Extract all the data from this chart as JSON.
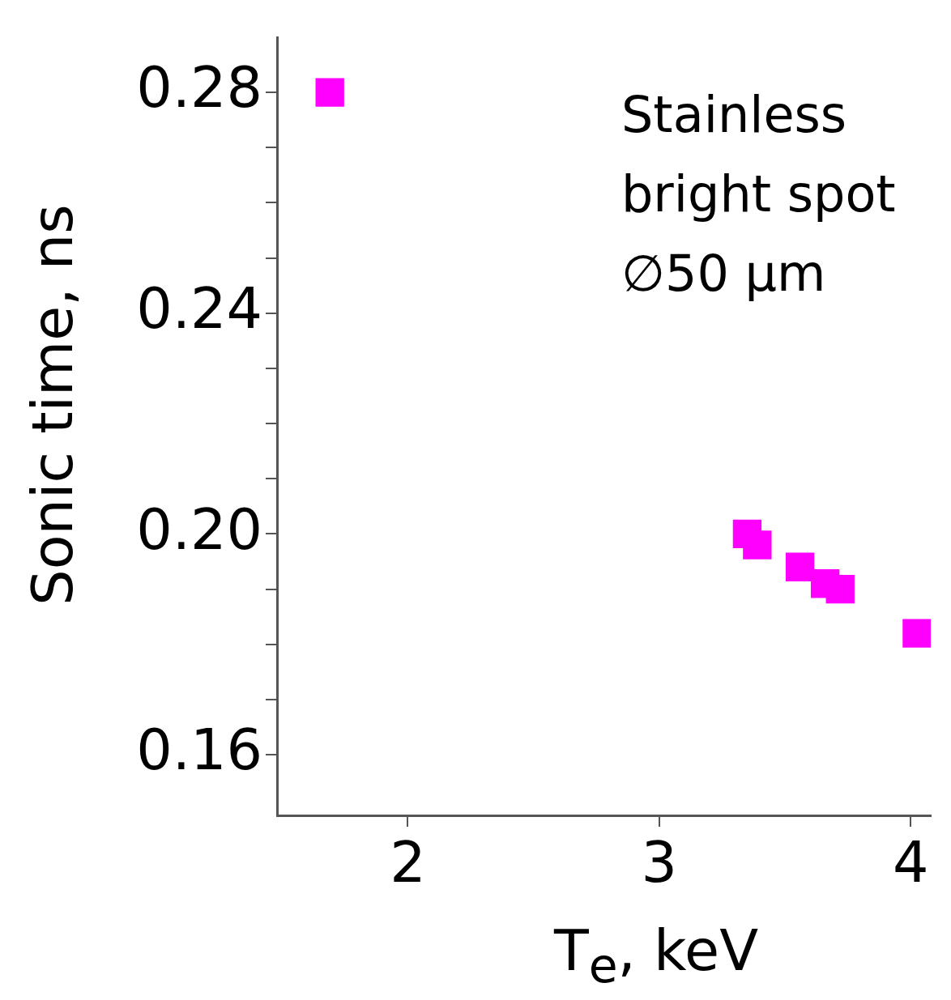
{
  "chart_data": {
    "type": "scatter",
    "xlabel": "T$_{e}$, keV",
    "ylabel": "Sonic time, ns",
    "annotations": [
      "Stainless\nbright spot\n∅50 μm"
    ],
    "x": [
      1.69,
      3.35,
      3.39,
      3.56,
      3.66,
      3.72,
      4.025
    ],
    "values": [
      0.28,
      0.2,
      0.198,
      0.194,
      0.191,
      0.19,
      0.182
    ],
    "color": "#ff00ff",
    "marker": "square",
    "xlim": [
      1.48,
      4.08
    ],
    "ylim": [
      0.149,
      0.29
    ],
    "xticks": [
      2,
      3,
      4
    ],
    "yticks": [
      0.16,
      {
        "value": 0.17,
        "label": null
      },
      {
        "value": 0.18,
        "label": null
      },
      {
        "value": 0.19,
        "label": null
      },
      "0.20",
      {
        "value": 0.21,
        "label": null
      },
      {
        "value": 0.22,
        "label": null
      },
      {
        "value": 0.23,
        "label": null
      },
      0.24,
      {
        "value": 0.25,
        "label": null
      },
      {
        "value": 0.26,
        "label": null
      },
      {
        "value": 0.27,
        "label": null
      },
      0.28
    ]
  }
}
